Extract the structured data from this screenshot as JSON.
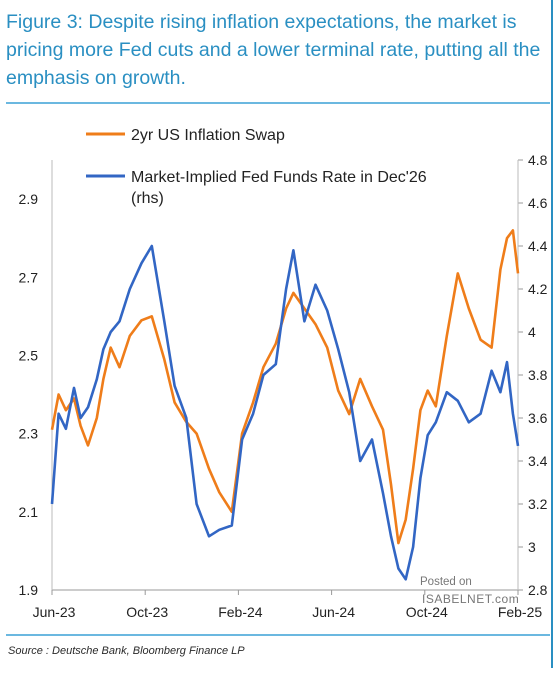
{
  "title": "Figure 3: Despite rising inflation expectations, the market is pricing more Fed cuts and a lower terminal rate, putting all the emphasis on growth.",
  "source": "Source : Deutsche Bank, Bloomberg Finance LP",
  "watermark": {
    "line1": "Posted on",
    "line2": "ISABELNET.com"
  },
  "colors": {
    "title": "#2a8fc2",
    "series_orange": "#ef7d1a",
    "series_blue": "#3266c4",
    "divider": "#6bb8e0"
  },
  "chart_data": {
    "type": "line",
    "x_tick_labels": [
      "Jun-23",
      "Oct-23",
      "Feb-24",
      "Jun-24",
      "Oct-24",
      "Feb-25"
    ],
    "x_range": [
      "2023-06-01",
      "2025-02-25"
    ],
    "y_left": {
      "ticks": [
        "1.9",
        "2.1",
        "2.3",
        "2.5",
        "2.7",
        "2.9"
      ],
      "ylim": [
        1.9,
        3.0
      ]
    },
    "y_right": {
      "ticks": [
        "2.8",
        "3",
        "3.2",
        "3.4",
        "3.6",
        "3.8",
        "4",
        "4.2",
        "4.4",
        "4.6",
        "4.8"
      ],
      "ylim": [
        2.8,
        4.8
      ]
    },
    "legend": {
      "placement": "top-left"
    },
    "series": [
      {
        "name": "2yr US Inflation Swap",
        "axis": "left",
        "color": "#ef7d1a",
        "points": [
          [
            "2023-06-01",
            2.31
          ],
          [
            "2023-06-10",
            2.4
          ],
          [
            "2023-06-20",
            2.36
          ],
          [
            "2023-07-01",
            2.39
          ],
          [
            "2023-07-10",
            2.32
          ],
          [
            "2023-07-20",
            2.27
          ],
          [
            "2023-08-01",
            2.34
          ],
          [
            "2023-08-10",
            2.44
          ],
          [
            "2023-08-20",
            2.52
          ],
          [
            "2023-09-01",
            2.47
          ],
          [
            "2023-09-15",
            2.55
          ],
          [
            "2023-10-01",
            2.59
          ],
          [
            "2023-10-15",
            2.6
          ],
          [
            "2023-11-01",
            2.49
          ],
          [
            "2023-11-15",
            2.38
          ],
          [
            "2023-12-01",
            2.33
          ],
          [
            "2023-12-15",
            2.3
          ],
          [
            "2024-01-01",
            2.21
          ],
          [
            "2024-01-15",
            2.15
          ],
          [
            "2024-02-01",
            2.1
          ],
          [
            "2024-02-15",
            2.3
          ],
          [
            "2024-03-01",
            2.38
          ],
          [
            "2024-03-15",
            2.47
          ],
          [
            "2024-04-01",
            2.53
          ],
          [
            "2024-04-15",
            2.62
          ],
          [
            "2024-04-25",
            2.66
          ],
          [
            "2024-05-10",
            2.62
          ],
          [
            "2024-05-25",
            2.58
          ],
          [
            "2024-06-10",
            2.52
          ],
          [
            "2024-06-25",
            2.41
          ],
          [
            "2024-07-10",
            2.35
          ],
          [
            "2024-07-25",
            2.44
          ],
          [
            "2024-08-10",
            2.37
          ],
          [
            "2024-08-25",
            2.31
          ],
          [
            "2024-09-05",
            2.17
          ],
          [
            "2024-09-15",
            2.02
          ],
          [
            "2024-09-25",
            2.08
          ],
          [
            "2024-10-05",
            2.21
          ],
          [
            "2024-10-15",
            2.36
          ],
          [
            "2024-10-25",
            2.41
          ],
          [
            "2024-11-05",
            2.37
          ],
          [
            "2024-11-20",
            2.55
          ],
          [
            "2024-12-05",
            2.71
          ],
          [
            "2024-12-20",
            2.62
          ],
          [
            "2025-01-05",
            2.54
          ],
          [
            "2025-01-20",
            2.52
          ],
          [
            "2025-02-01",
            2.72
          ],
          [
            "2025-02-10",
            2.8
          ],
          [
            "2025-02-18",
            2.82
          ],
          [
            "2025-02-25",
            2.71
          ]
        ]
      },
      {
        "name": "Market-Implied Fed Funds Rate in Dec'26 (rhs)",
        "axis": "right",
        "color": "#3266c4",
        "points": [
          [
            "2023-06-01",
            3.2
          ],
          [
            "2023-06-10",
            3.62
          ],
          [
            "2023-06-20",
            3.55
          ],
          [
            "2023-07-01",
            3.74
          ],
          [
            "2023-07-10",
            3.6
          ],
          [
            "2023-07-20",
            3.65
          ],
          [
            "2023-08-01",
            3.78
          ],
          [
            "2023-08-10",
            3.92
          ],
          [
            "2023-08-20",
            4.0
          ],
          [
            "2023-09-01",
            4.05
          ],
          [
            "2023-09-15",
            4.2
          ],
          [
            "2023-10-01",
            4.32
          ],
          [
            "2023-10-15",
            4.4
          ],
          [
            "2023-11-01",
            4.05
          ],
          [
            "2023-11-15",
            3.75
          ],
          [
            "2023-12-01",
            3.6
          ],
          [
            "2023-12-15",
            3.2
          ],
          [
            "2024-01-01",
            3.05
          ],
          [
            "2024-01-15",
            3.08
          ],
          [
            "2024-02-01",
            3.1
          ],
          [
            "2024-02-15",
            3.5
          ],
          [
            "2024-03-01",
            3.62
          ],
          [
            "2024-03-15",
            3.8
          ],
          [
            "2024-04-01",
            3.85
          ],
          [
            "2024-04-15",
            4.2
          ],
          [
            "2024-04-25",
            4.38
          ],
          [
            "2024-05-10",
            4.05
          ],
          [
            "2024-05-25",
            4.22
          ],
          [
            "2024-06-10",
            4.1
          ],
          [
            "2024-06-25",
            3.92
          ],
          [
            "2024-07-10",
            3.72
          ],
          [
            "2024-07-25",
            3.4
          ],
          [
            "2024-08-10",
            3.5
          ],
          [
            "2024-08-25",
            3.25
          ],
          [
            "2024-09-05",
            3.05
          ],
          [
            "2024-09-15",
            2.9
          ],
          [
            "2024-09-25",
            2.85
          ],
          [
            "2024-10-05",
            3.0
          ],
          [
            "2024-10-15",
            3.32
          ],
          [
            "2024-10-25",
            3.52
          ],
          [
            "2024-11-05",
            3.58
          ],
          [
            "2024-11-20",
            3.72
          ],
          [
            "2024-12-05",
            3.68
          ],
          [
            "2024-12-20",
            3.58
          ],
          [
            "2025-01-05",
            3.62
          ],
          [
            "2025-01-20",
            3.82
          ],
          [
            "2025-02-01",
            3.72
          ],
          [
            "2025-02-10",
            3.86
          ],
          [
            "2025-02-18",
            3.62
          ],
          [
            "2025-02-25",
            3.47
          ]
        ]
      }
    ]
  }
}
